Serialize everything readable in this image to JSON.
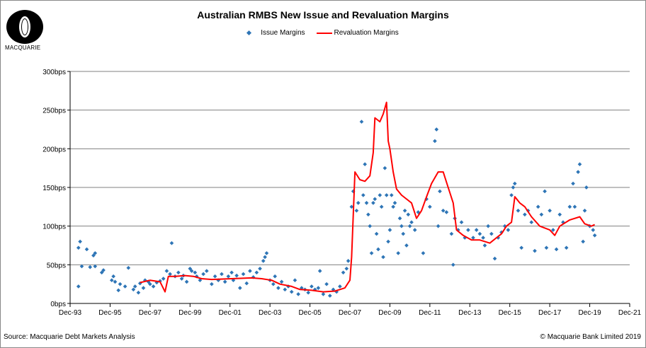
{
  "logo": {
    "text": "MACQUARIE"
  },
  "footer": {
    "source": "Source: Macquarie Debt Markets Analysis",
    "copyright": "© Macquarie Bank Limited 2019"
  },
  "colors": {
    "issue": "#2e75b6",
    "revaluation": "#ff0000",
    "grid": "#808080"
  },
  "chart_data": {
    "type": "scatter+line",
    "title": "Australian  RMBS New Issue and Revaluation Margins",
    "legend_placement": "top-center",
    "grid": "horizontal",
    "xlim": [
      "1993-12",
      "2021-12"
    ],
    "ylim": [
      0,
      300
    ],
    "x_ticks": [
      "Dec-93",
      "Dec-95",
      "Dec-97",
      "Dec-99",
      "Dec-01",
      "Dec-03",
      "Dec-05",
      "Dec-07",
      "Dec-09",
      "Dec-11",
      "Dec-13",
      "Dec-15",
      "Dec-17",
      "Dec-19",
      "Dec-21"
    ],
    "y_ticks": [
      "0bps",
      "50bps",
      "100bps",
      "150bps",
      "200bps",
      "250bps",
      "300bps"
    ],
    "series": [
      {
        "name": "Issue Margins",
        "type": "scatter",
        "points": [
          [
            "1994-05",
            22
          ],
          [
            "1994-05",
            72
          ],
          [
            "1994-06",
            80
          ],
          [
            "1994-07",
            48
          ],
          [
            "1994-10",
            70
          ],
          [
            "1994-12",
            47
          ],
          [
            "1995-02",
            62
          ],
          [
            "1995-03",
            65
          ],
          [
            "1995-03",
            48
          ],
          [
            "1995-07",
            40
          ],
          [
            "1995-08",
            43
          ],
          [
            "1996-01",
            30
          ],
          [
            "1996-02",
            35
          ],
          [
            "1996-03",
            28
          ],
          [
            "1996-05",
            17
          ],
          [
            "1996-06",
            25
          ],
          [
            "1996-09",
            22
          ],
          [
            "1996-11",
            46
          ],
          [
            "1997-02",
            18
          ],
          [
            "1997-03",
            22
          ],
          [
            "1997-05",
            14
          ],
          [
            "1997-06",
            26
          ],
          [
            "1997-08",
            20
          ],
          [
            "1997-09",
            30
          ],
          [
            "1997-11",
            28
          ],
          [
            "1997-12",
            25
          ],
          [
            "1998-02",
            22
          ],
          [
            "1998-04",
            27
          ],
          [
            "1998-06",
            29
          ],
          [
            "1998-08",
            32
          ],
          [
            "1998-10",
            42
          ],
          [
            "1998-12",
            38
          ],
          [
            "1999-01",
            78
          ],
          [
            "1999-03",
            35
          ],
          [
            "1999-05",
            40
          ],
          [
            "1999-07",
            32
          ],
          [
            "1999-08",
            36
          ],
          [
            "1999-10",
            28
          ],
          [
            "1999-12",
            45
          ],
          [
            "2000-01",
            42
          ],
          [
            "2000-03",
            40
          ],
          [
            "2000-04",
            35
          ],
          [
            "2000-06",
            30
          ],
          [
            "2000-08",
            38
          ],
          [
            "2000-10",
            42
          ],
          [
            "2001-01",
            25
          ],
          [
            "2001-03",
            35
          ],
          [
            "2001-05",
            30
          ],
          [
            "2001-07",
            38
          ],
          [
            "2001-09",
            28
          ],
          [
            "2001-11",
            35
          ],
          [
            "2002-01",
            40
          ],
          [
            "2002-02",
            30
          ],
          [
            "2002-04",
            36
          ],
          [
            "2002-06",
            20
          ],
          [
            "2002-08",
            38
          ],
          [
            "2002-10",
            26
          ],
          [
            "2002-12",
            42
          ],
          [
            "2003-02",
            34
          ],
          [
            "2003-04",
            40
          ],
          [
            "2003-06",
            45
          ],
          [
            "2003-08",
            55
          ],
          [
            "2003-09",
            60
          ],
          [
            "2003-10",
            65
          ],
          [
            "2003-12",
            30
          ],
          [
            "2004-02",
            25
          ],
          [
            "2004-03",
            35
          ],
          [
            "2004-05",
            20
          ],
          [
            "2004-07",
            28
          ],
          [
            "2004-09",
            18
          ],
          [
            "2004-11",
            22
          ],
          [
            "2005-01",
            15
          ],
          [
            "2005-03",
            30
          ],
          [
            "2005-05",
            12
          ],
          [
            "2005-07",
            20
          ],
          [
            "2005-09",
            18
          ],
          [
            "2005-11",
            14
          ],
          [
            "2006-01",
            22
          ],
          [
            "2006-03",
            18
          ],
          [
            "2006-05",
            20
          ],
          [
            "2006-06",
            42
          ],
          [
            "2006-08",
            12
          ],
          [
            "2006-10",
            25
          ],
          [
            "2006-12",
            10
          ],
          [
            "2007-02",
            18
          ],
          [
            "2007-04",
            15
          ],
          [
            "2007-06",
            22
          ],
          [
            "2007-08",
            40
          ],
          [
            "2007-10",
            45
          ],
          [
            "2007-11",
            55
          ],
          [
            "2008-01",
            125
          ],
          [
            "2008-02",
            145
          ],
          [
            "2008-04",
            120
          ],
          [
            "2008-05",
            130
          ],
          [
            "2008-07",
            235
          ],
          [
            "2008-08",
            140
          ],
          [
            "2008-09",
            180
          ],
          [
            "2008-10",
            130
          ],
          [
            "2008-11",
            115
          ],
          [
            "2008-12",
            100
          ],
          [
            "2009-01",
            65
          ],
          [
            "2009-02",
            130
          ],
          [
            "2009-03",
            135
          ],
          [
            "2009-04",
            90
          ],
          [
            "2009-05",
            70
          ],
          [
            "2009-06",
            140
          ],
          [
            "2009-07",
            125
          ],
          [
            "2009-08",
            60
          ],
          [
            "2009-09",
            175
          ],
          [
            "2009-10",
            140
          ],
          [
            "2009-11",
            80
          ],
          [
            "2009-12",
            95
          ],
          [
            "2010-01",
            140
          ],
          [
            "2010-02",
            125
          ],
          [
            "2010-03",
            130
          ],
          [
            "2010-05",
            65
          ],
          [
            "2010-06",
            110
          ],
          [
            "2010-07",
            100
          ],
          [
            "2010-08",
            90
          ],
          [
            "2010-09",
            120
          ],
          [
            "2010-10",
            75
          ],
          [
            "2010-11",
            115
          ],
          [
            "2010-12",
            100
          ],
          [
            "2011-01",
            105
          ],
          [
            "2011-03",
            95
          ],
          [
            "2011-05",
            118
          ],
          [
            "2011-08",
            65
          ],
          [
            "2011-10",
            135
          ],
          [
            "2011-12",
            125
          ],
          [
            "2012-03",
            210
          ],
          [
            "2012-04",
            225
          ],
          [
            "2012-05",
            100
          ],
          [
            "2012-06",
            145
          ],
          [
            "2012-08",
            120
          ],
          [
            "2012-10",
            118
          ],
          [
            "2013-01",
            90
          ],
          [
            "2013-02",
            50
          ],
          [
            "2013-03",
            110
          ],
          [
            "2013-05",
            95
          ],
          [
            "2013-07",
            105
          ],
          [
            "2013-09",
            85
          ],
          [
            "2013-11",
            95
          ],
          [
            "2014-02",
            85
          ],
          [
            "2014-04",
            95
          ],
          [
            "2014-06",
            90
          ],
          [
            "2014-08",
            85
          ],
          [
            "2014-09",
            75
          ],
          [
            "2014-11",
            100
          ],
          [
            "2015-01",
            90
          ],
          [
            "2015-03",
            58
          ],
          [
            "2015-05",
            85
          ],
          [
            "2015-07",
            92
          ],
          [
            "2015-09",
            100
          ],
          [
            "2015-11",
            95
          ],
          [
            "2016-01",
            140
          ],
          [
            "2016-02",
            150
          ],
          [
            "2016-03",
            155
          ],
          [
            "2016-05",
            120
          ],
          [
            "2016-07",
            72
          ],
          [
            "2016-09",
            115
          ],
          [
            "2016-11",
            120
          ],
          [
            "2017-01",
            105
          ],
          [
            "2017-03",
            68
          ],
          [
            "2017-05",
            125
          ],
          [
            "2017-07",
            115
          ],
          [
            "2017-09",
            145
          ],
          [
            "2017-10",
            72
          ],
          [
            "2017-12",
            120
          ],
          [
            "2018-02",
            95
          ],
          [
            "2018-04",
            70
          ],
          [
            "2018-06",
            115
          ],
          [
            "2018-08",
            105
          ],
          [
            "2018-10",
            72
          ],
          [
            "2018-12",
            125
          ],
          [
            "2019-02",
            155
          ],
          [
            "2019-03",
            125
          ],
          [
            "2019-05",
            170
          ],
          [
            "2019-06",
            180
          ],
          [
            "2019-08",
            80
          ],
          [
            "2019-09",
            120
          ],
          [
            "2019-10",
            150
          ],
          [
            "2019-12",
            100
          ],
          [
            "2020-02",
            95
          ],
          [
            "2020-03",
            88
          ]
        ]
      },
      {
        "name": "Revaluation Margins",
        "type": "line",
        "points": [
          [
            "1997-06",
            27
          ],
          [
            "1997-12",
            30
          ],
          [
            "1998-06",
            28
          ],
          [
            "1998-09",
            15
          ],
          [
            "1998-11",
            35
          ],
          [
            "1999-03",
            35
          ],
          [
            "1999-09",
            36
          ],
          [
            "2000-02",
            35
          ],
          [
            "2000-07",
            32
          ],
          [
            "2001-01",
            31
          ],
          [
            "2002-01",
            32
          ],
          [
            "2003-01",
            33
          ],
          [
            "2003-07",
            32
          ],
          [
            "2004-01",
            30
          ],
          [
            "2004-06",
            25
          ],
          [
            "2005-01",
            22
          ],
          [
            "2005-06",
            18
          ],
          [
            "2006-01",
            17
          ],
          [
            "2006-08",
            15
          ],
          [
            "2007-03",
            16
          ],
          [
            "2007-06",
            18
          ],
          [
            "2007-09",
            20
          ],
          [
            "2007-12",
            30
          ],
          [
            "2008-01",
            60
          ],
          [
            "2008-03",
            170
          ],
          [
            "2008-06",
            160
          ],
          [
            "2008-09",
            158
          ],
          [
            "2008-12",
            165
          ],
          [
            "2009-02",
            195
          ],
          [
            "2009-03",
            240
          ],
          [
            "2009-06",
            235
          ],
          [
            "2009-08",
            245
          ],
          [
            "2009-10",
            260
          ],
          [
            "2009-11",
            210
          ],
          [
            "2009-12",
            200
          ],
          [
            "2010-02",
            170
          ],
          [
            "2010-04",
            148
          ],
          [
            "2010-07",
            140
          ],
          [
            "2010-10",
            135
          ],
          [
            "2011-01",
            130
          ],
          [
            "2011-04",
            110
          ],
          [
            "2011-07",
            120
          ],
          [
            "2011-10",
            138
          ],
          [
            "2012-01",
            155
          ],
          [
            "2012-05",
            170
          ],
          [
            "2012-08",
            170
          ],
          [
            "2012-11",
            150
          ],
          [
            "2013-02",
            130
          ],
          [
            "2013-04",
            95
          ],
          [
            "2013-08",
            88
          ],
          [
            "2014-01",
            82
          ],
          [
            "2014-06",
            82
          ],
          [
            "2014-12",
            78
          ],
          [
            "2015-04",
            85
          ],
          [
            "2015-07",
            90
          ],
          [
            "2015-10",
            100
          ],
          [
            "2016-01",
            105
          ],
          [
            "2016-03",
            138
          ],
          [
            "2016-06",
            130
          ],
          [
            "2016-09",
            125
          ],
          [
            "2017-01",
            112
          ],
          [
            "2017-06",
            100
          ],
          [
            "2017-12",
            95
          ],
          [
            "2018-03",
            88
          ],
          [
            "2018-06",
            100
          ],
          [
            "2018-12",
            108
          ],
          [
            "2019-06",
            112
          ],
          [
            "2019-09",
            103
          ],
          [
            "2020-01",
            100
          ],
          [
            "2020-03",
            102
          ]
        ]
      }
    ]
  }
}
